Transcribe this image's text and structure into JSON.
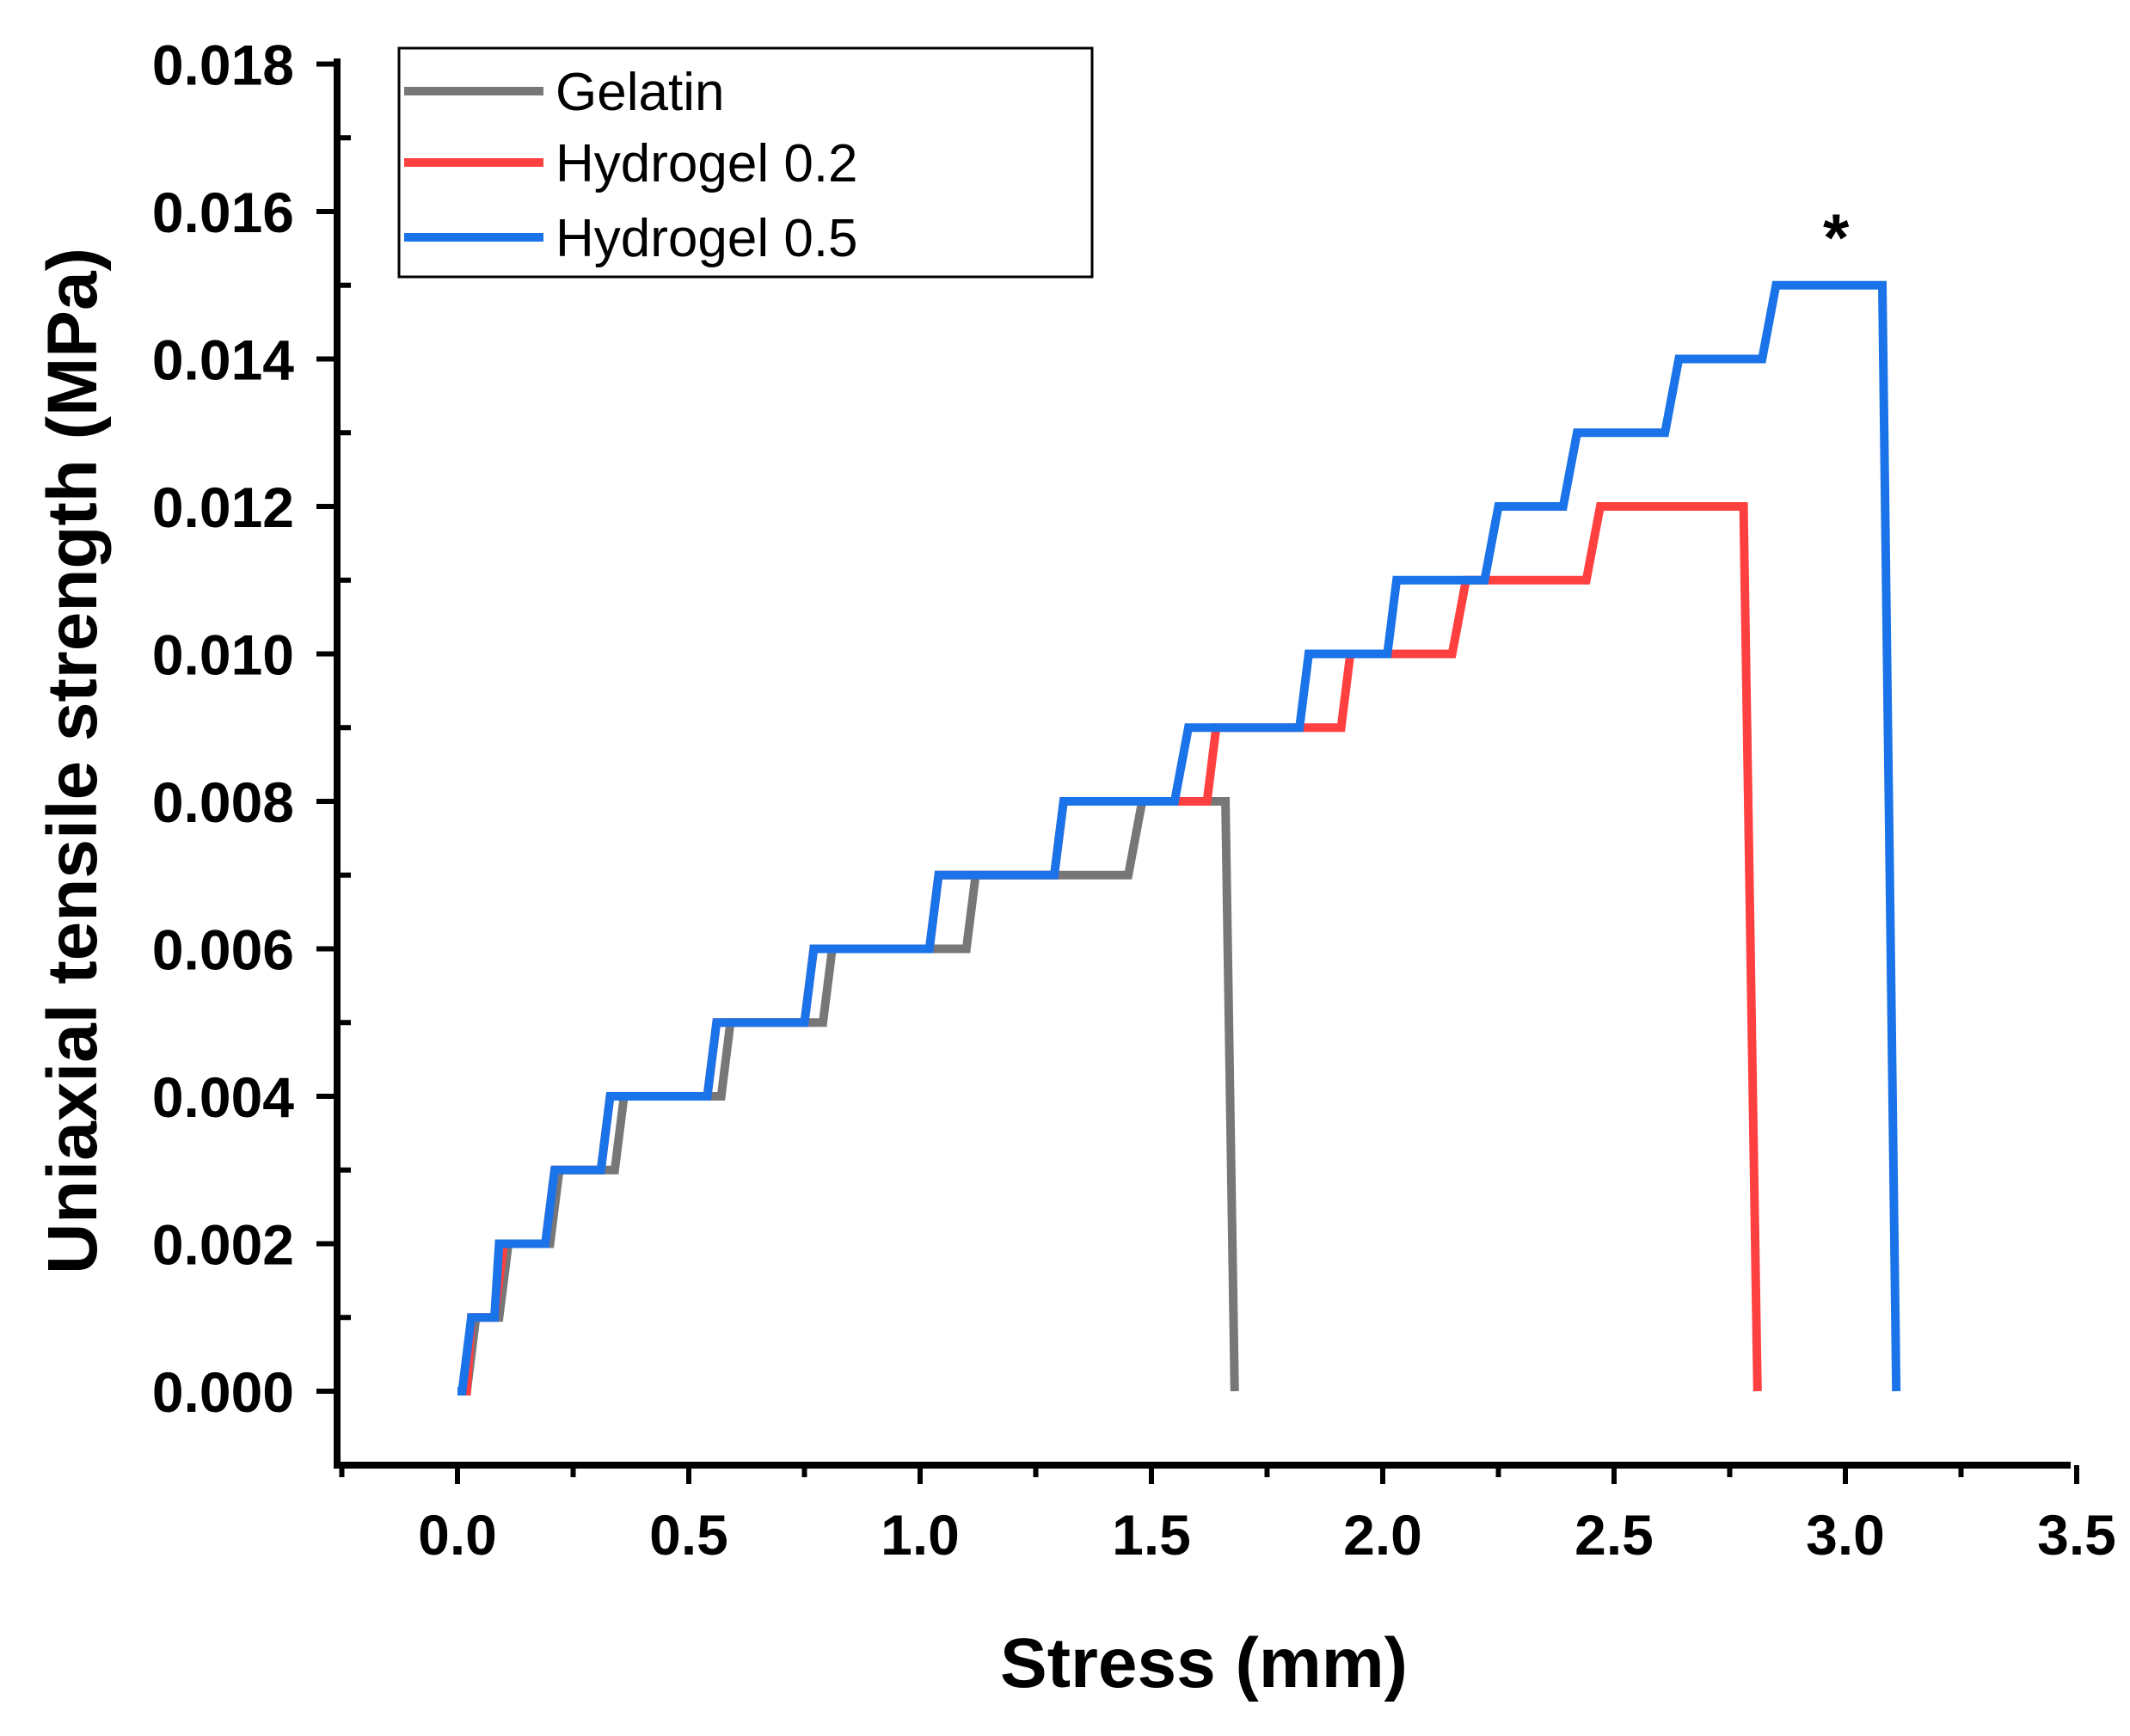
{
  "chart_data": {
    "type": "line",
    "title": "",
    "xlabel": "Stress (mm)",
    "ylabel": "Uniaxial tensile strength (MPa)",
    "xlim": [
      -0.25,
      3.5
    ],
    "ylim": [
      -0.001,
      0.018
    ],
    "x_ticks": [
      "0.0",
      "0.5",
      "1.0",
      "1.5",
      "2.0",
      "2.5",
      "3.0",
      "3.5"
    ],
    "y_ticks": [
      "0.000",
      "0.002",
      "0.004",
      "0.006",
      "0.008",
      "0.010",
      "0.012",
      "0.014",
      "0.016",
      "0.018"
    ],
    "legend_position": "top-left",
    "annotation": {
      "text": "*",
      "x": 2.98,
      "y": 0.0158
    },
    "series": [
      {
        "name": "Gelatin",
        "color": "#777777",
        "points": [
          [
            0,
            0
          ],
          [
            0.02,
            0
          ],
          [
            0.04,
            0.001
          ],
          [
            0.09,
            0.001
          ],
          [
            0.11,
            0.002
          ],
          [
            0.2,
            0.002
          ],
          [
            0.22,
            0.003
          ],
          [
            0.34,
            0.003
          ],
          [
            0.36,
            0.004
          ],
          [
            0.57,
            0.004
          ],
          [
            0.59,
            0.005
          ],
          [
            0.79,
            0.005
          ],
          [
            0.81,
            0.006
          ],
          [
            1.1,
            0.006
          ],
          [
            1.12,
            0.007
          ],
          [
            1.45,
            0.007
          ],
          [
            1.48,
            0.008
          ],
          [
            1.66,
            0.008
          ],
          [
            1.68,
            0.0
          ]
        ]
      },
      {
        "name": "Hydrogel 0.2",
        "color": "#FF4040",
        "points": [
          [
            0,
            0
          ],
          [
            0.02,
            0
          ],
          [
            0.03,
            0.001
          ],
          [
            0.08,
            0.001
          ],
          [
            0.1,
            0.002
          ],
          [
            0.19,
            0.002
          ],
          [
            0.21,
            0.003
          ],
          [
            0.31,
            0.003
          ],
          [
            0.33,
            0.004
          ],
          [
            0.54,
            0.004
          ],
          [
            0.56,
            0.005
          ],
          [
            0.75,
            0.005
          ],
          [
            0.77,
            0.006
          ],
          [
            1.02,
            0.006
          ],
          [
            1.04,
            0.007
          ],
          [
            1.29,
            0.007
          ],
          [
            1.31,
            0.008
          ],
          [
            1.62,
            0.008
          ],
          [
            1.64,
            0.009
          ],
          [
            1.91,
            0.009
          ],
          [
            1.93,
            0.01
          ],
          [
            2.15,
            0.01
          ],
          [
            2.18,
            0.011
          ],
          [
            2.44,
            0.011
          ],
          [
            2.47,
            0.012
          ],
          [
            2.78,
            0.012
          ],
          [
            2.81,
            0.0
          ]
        ]
      },
      {
        "name": "Hydrogel 0.5",
        "color": "#1A73E8",
        "points": [
          [
            0,
            0
          ],
          [
            0.01,
            0
          ],
          [
            0.03,
            0.001
          ],
          [
            0.08,
            0.001
          ],
          [
            0.09,
            0.002
          ],
          [
            0.19,
            0.002
          ],
          [
            0.21,
            0.003
          ],
          [
            0.31,
            0.003
          ],
          [
            0.33,
            0.004
          ],
          [
            0.54,
            0.004
          ],
          [
            0.56,
            0.005
          ],
          [
            0.75,
            0.005
          ],
          [
            0.77,
            0.006
          ],
          [
            1.02,
            0.006
          ],
          [
            1.04,
            0.007
          ],
          [
            1.29,
            0.007
          ],
          [
            1.31,
            0.008
          ],
          [
            1.55,
            0.008
          ],
          [
            1.58,
            0.009
          ],
          [
            1.82,
            0.009
          ],
          [
            1.84,
            0.01
          ],
          [
            2.01,
            0.01
          ],
          [
            2.03,
            0.011
          ],
          [
            2.22,
            0.011
          ],
          [
            2.25,
            0.012
          ],
          [
            2.39,
            0.012
          ],
          [
            2.42,
            0.013
          ],
          [
            2.61,
            0.013
          ],
          [
            2.64,
            0.014
          ],
          [
            2.82,
            0.014
          ],
          [
            2.85,
            0.015
          ],
          [
            3.08,
            0.015
          ],
          [
            3.11,
            0.0
          ]
        ]
      }
    ]
  }
}
